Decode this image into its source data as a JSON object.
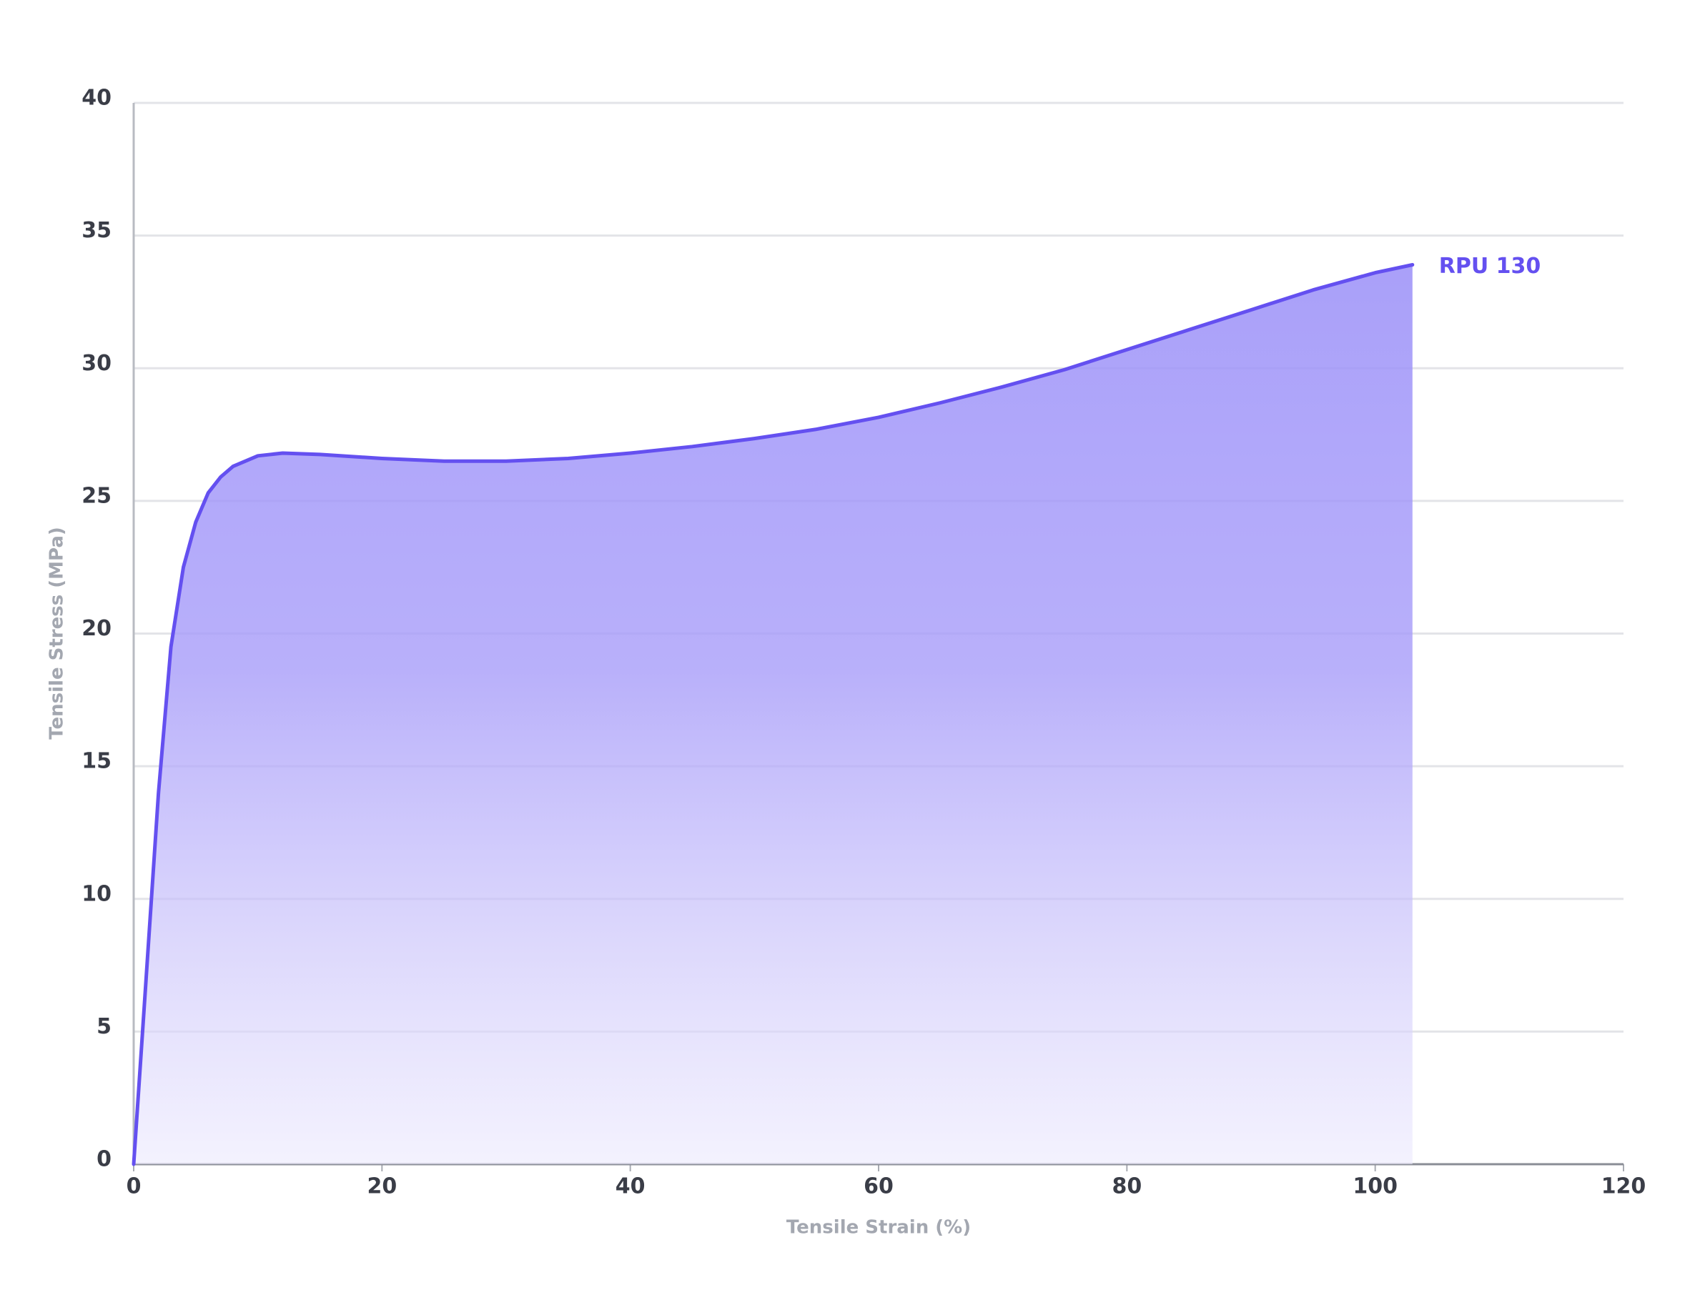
{
  "chart_data": {
    "type": "area",
    "xlabel": "Tensile Strain (%)",
    "ylabel": "Tensile Stress (MPa)",
    "x": [
      0,
      1,
      2,
      3,
      4,
      5,
      6,
      7,
      8,
      10,
      12,
      15,
      20,
      25,
      30,
      35,
      40,
      45,
      50,
      55,
      60,
      65,
      70,
      75,
      80,
      85,
      90,
      95,
      100,
      103
    ],
    "series": [
      {
        "name": "RPU 130",
        "color": "#6450f0",
        "values": [
          0,
          7,
          14,
          19.5,
          22.5,
          24.2,
          25.3,
          25.9,
          26.3,
          26.7,
          26.8,
          26.75,
          26.6,
          26.5,
          26.5,
          26.6,
          26.8,
          27.05,
          27.35,
          27.7,
          28.15,
          28.7,
          29.3,
          29.95,
          30.7,
          31.45,
          32.2,
          32.95,
          33.6,
          33.9
        ]
      }
    ],
    "xlim": [
      0,
      120
    ],
    "xticks": [
      0,
      20,
      40,
      60,
      80,
      100,
      120
    ],
    "ylim": [
      0,
      40
    ],
    "yticks": [
      0,
      5,
      10,
      15,
      20,
      25,
      30,
      35,
      40
    ],
    "grid": true
  }
}
